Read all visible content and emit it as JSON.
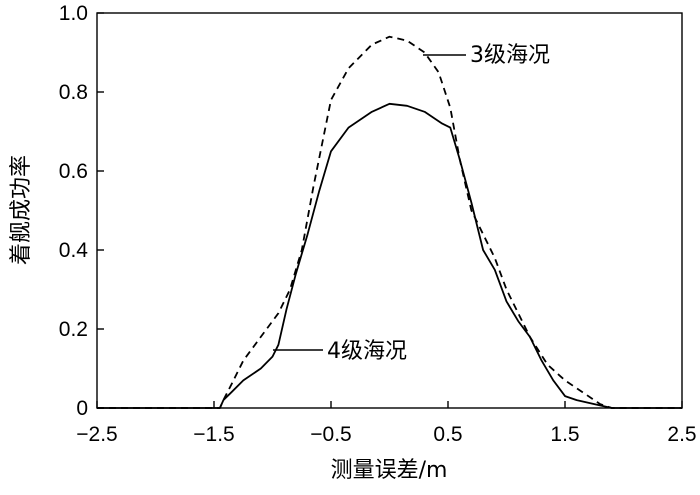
{
  "chart_data": {
    "type": "line",
    "title": "",
    "xlabel": "测量误差/m",
    "ylabel": "着舰成功率",
    "xlim": [
      -2.5,
      2.5
    ],
    "ylim": [
      0,
      1.0
    ],
    "grid": false,
    "x_ticks": [
      -2.5,
      -1.5,
      -0.5,
      0.5,
      1.5,
      2.5
    ],
    "x_tick_labels": [
      "−2.5",
      "−1.5",
      "−0.5",
      "0.5",
      "1.5",
      "2.5"
    ],
    "y_ticks": [
      0,
      0.2,
      0.4,
      0.6,
      0.8,
      1.0
    ],
    "y_tick_labels": [
      "0",
      "0.2",
      "0.4",
      "0.6",
      "0.8",
      "1.0"
    ],
    "series": [
      {
        "name": "3级海况",
        "style": "dashed",
        "color": "#000000",
        "points": [
          [
            -2.5,
            0
          ],
          [
            -1.45,
            0
          ],
          [
            -1.42,
            0.02
          ],
          [
            -1.35,
            0.06
          ],
          [
            -1.25,
            0.12
          ],
          [
            -1.1,
            0.18
          ],
          [
            -0.95,
            0.24
          ],
          [
            -0.85,
            0.3
          ],
          [
            -0.75,
            0.4
          ],
          [
            -0.65,
            0.56
          ],
          [
            -0.5,
            0.78
          ],
          [
            -0.35,
            0.86
          ],
          [
            -0.15,
            0.92
          ],
          [
            0,
            0.94
          ],
          [
            0.15,
            0.93
          ],
          [
            0.3,
            0.9
          ],
          [
            0.42,
            0.85
          ],
          [
            0.52,
            0.76
          ],
          [
            0.6,
            0.63
          ],
          [
            0.7,
            0.5
          ],
          [
            0.8,
            0.44
          ],
          [
            0.9,
            0.38
          ],
          [
            1.0,
            0.3
          ],
          [
            1.1,
            0.24
          ],
          [
            1.2,
            0.18
          ],
          [
            1.35,
            0.11
          ],
          [
            1.5,
            0.07
          ],
          [
            1.65,
            0.04
          ],
          [
            1.8,
            0.01
          ],
          [
            1.9,
            0
          ],
          [
            2.5,
            0
          ]
        ]
      },
      {
        "name": "4级海况",
        "style": "solid",
        "color": "#000000",
        "points": [
          [
            -2.5,
            0
          ],
          [
            -1.45,
            0
          ],
          [
            -1.42,
            0.02
          ],
          [
            -1.35,
            0.04
          ],
          [
            -1.25,
            0.07
          ],
          [
            -1.1,
            0.1
          ],
          [
            -1.0,
            0.13
          ],
          [
            -0.95,
            0.16
          ],
          [
            -0.88,
            0.25
          ],
          [
            -0.8,
            0.34
          ],
          [
            -0.7,
            0.44
          ],
          [
            -0.6,
            0.55
          ],
          [
            -0.5,
            0.65
          ],
          [
            -0.35,
            0.71
          ],
          [
            -0.15,
            0.75
          ],
          [
            0,
            0.77
          ],
          [
            0.15,
            0.765
          ],
          [
            0.3,
            0.75
          ],
          [
            0.45,
            0.72
          ],
          [
            0.52,
            0.71
          ],
          [
            0.6,
            0.63
          ],
          [
            0.7,
            0.52
          ],
          [
            0.8,
            0.4
          ],
          [
            0.9,
            0.35
          ],
          [
            1.0,
            0.27
          ],
          [
            1.1,
            0.22
          ],
          [
            1.2,
            0.18
          ],
          [
            1.3,
            0.12
          ],
          [
            1.4,
            0.07
          ],
          [
            1.5,
            0.03
          ],
          [
            1.6,
            0.02
          ],
          [
            1.75,
            0.01
          ],
          [
            1.9,
            0
          ],
          [
            2.5,
            0
          ]
        ]
      }
    ],
    "annotations": [
      {
        "text": "3级海况",
        "series": 0
      },
      {
        "text": "4级海况",
        "series": 1
      }
    ]
  }
}
